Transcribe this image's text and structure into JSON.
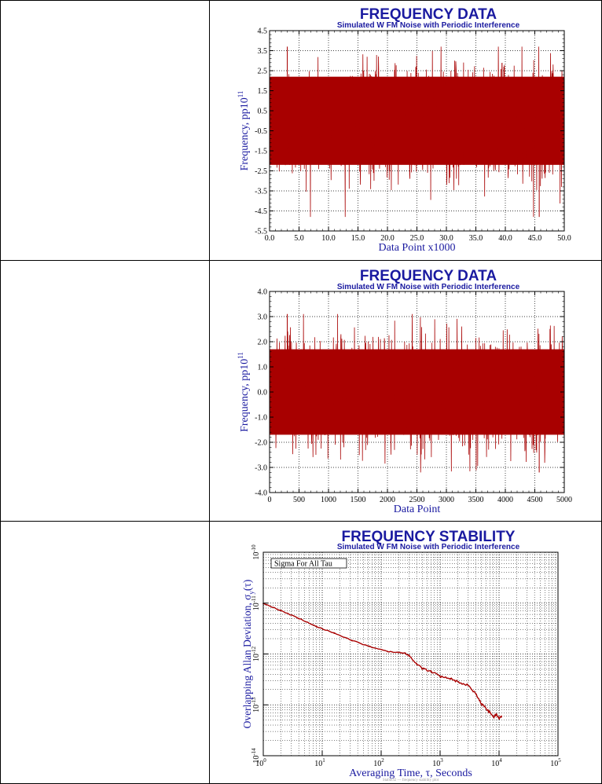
{
  "chart_data": [
    {
      "type": "line",
      "title": "FREQUENCY DATA",
      "subtitle": "Simulated W FM Noise with Periodic Interference",
      "xlabel": "Data Point x1000",
      "ylabel": "Frequency, pp10",
      "ylabel_sup": "11",
      "xlim": [
        0,
        50
      ],
      "ylim": [
        -5.5,
        4.5
      ],
      "xticks": [
        "0.0",
        "5.0",
        "10.0",
        "15.0",
        "20.0",
        "25.0",
        "30.0",
        "35.0",
        "40.0",
        "45.0",
        "50.0"
      ],
      "yticks": [
        "4.5",
        "3.5",
        "2.5",
        "1.5",
        "0.5",
        "-0.5",
        "-1.5",
        "-2.5",
        "-3.5",
        "-4.5",
        "-5.5"
      ],
      "series": [
        {
          "color": "#a80000",
          "n_points": 50000,
          "mean": 0.0,
          "band": [
            -2.5,
            2.5
          ],
          "extremes": [
            -4.8,
            3.7
          ]
        }
      ],
      "grid": true
    },
    {
      "type": "line",
      "title": "FREQUENCY DATA",
      "subtitle": "Simulated W FM Noise with Periodic Interference",
      "xlabel": "Data Point",
      "ylabel": "Frequency, pp10",
      "ylabel_sup": "11",
      "xlim": [
        0,
        5000
      ],
      "ylim": [
        -4.0,
        4.0
      ],
      "xticks": [
        "0",
        "500",
        "1000",
        "1500",
        "2000",
        "2500",
        "3000",
        "3500",
        "4000",
        "4500",
        "5000"
      ],
      "yticks": [
        "4.0",
        "3.0",
        "2.0",
        "1.0",
        "0.0",
        "-1.0",
        "-2.0",
        "-3.0",
        "-4.0"
      ],
      "series": [
        {
          "color": "#a80000",
          "n_points": 5000,
          "mean": 0.0,
          "band": [
            -2.0,
            2.0
          ],
          "extremes": [
            -3.2,
            3.1
          ]
        }
      ],
      "grid": true
    },
    {
      "type": "line",
      "title": "FREQUENCY STABILITY",
      "subtitle": "Simulated W FM Noise with Periodic Interference",
      "xlabel": "Averaging Time, τ, Seconds",
      "ylabel": "Overlapping Allan Deviation, σ",
      "ylabel_sub": "y",
      "ylabel_suffix": "(τ)",
      "log_x": true,
      "log_y": true,
      "xlim": [
        1,
        100000
      ],
      "ylim": [
        1e-14,
        1e-10
      ],
      "xtick_exponents": [
        "0",
        "1",
        "2",
        "3",
        "4",
        "5"
      ],
      "ytick_exponents": [
        "-10",
        "-11",
        "-12",
        "-13",
        "-14"
      ],
      "legend": "Sigma For All Tau",
      "legend_position": "top-left",
      "footer": "Stable32 — frequency stability plot",
      "series": [
        {
          "color": "#a80000",
          "x": [
            1,
            2,
            4,
            8,
            16,
            32,
            64,
            128,
            200,
            256,
            300,
            400,
            512,
            700,
            1024,
            1500,
            2048,
            3000,
            4096,
            5000,
            6000,
            7000,
            8192,
            9000,
            10000,
            11000
          ],
          "y": [
            9.8e-12,
            7.1e-12,
            5e-12,
            3.5e-12,
            2.55e-12,
            1.85e-12,
            1.4e-12,
            1.12e-12,
            1.07e-12,
            1.03e-12,
            9.2e-13,
            6.3e-13,
            5.1e-13,
            4.5e-13,
            3.6e-13,
            3.3e-13,
            2.8e-13,
            2.4e-13,
            1.6e-13,
            1.05e-13,
            8.6e-14,
            7e-14,
            5.8e-14,
            6.6e-14,
            5.4e-14,
            6e-14
          ]
        }
      ],
      "grid": true
    }
  ]
}
